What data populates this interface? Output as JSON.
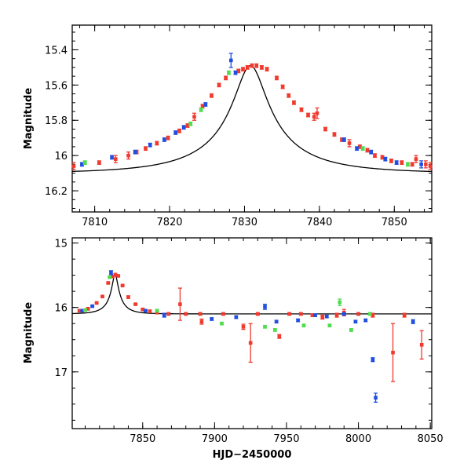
{
  "colors": {
    "blue": "#1f4fe0",
    "red": "#f03a2e",
    "green": "#4fdc4f",
    "model": "#000000"
  },
  "chart_data": [
    {
      "id": "top",
      "type": "scatter",
      "ylabel": "Magnitude",
      "xlabel": "",
      "xlim": [
        7807,
        7855
      ],
      "ylim": [
        16.32,
        15.26
      ],
      "y_inverted": true,
      "xticks": [
        7810,
        7820,
        7830,
        7840,
        7850
      ],
      "xtick_labels": [
        "7810",
        "7820",
        "7830",
        "7840",
        "7850"
      ],
      "yticks": [
        15.4,
        15.6,
        15.8,
        16,
        16.2
      ],
      "ytick_labels": [
        "15.4",
        "15.6",
        "15.8",
        "16",
        "16.2"
      ],
      "model": {
        "peak_time": 7830.8,
        "peak_mag": 15.49,
        "baseline_mag": 16.1,
        "u0": 0.17,
        "tE": 12
      },
      "series": [
        {
          "color": "red",
          "points": [
            [
              7807.2,
              16.06,
              0.02
            ],
            [
              7810.6,
              16.04,
              0.01
            ],
            [
              7812.8,
              16.02,
              0.02
            ],
            [
              7814.5,
              16.0,
              0.02
            ],
            [
              7815.6,
              15.98,
              0.01
            ],
            [
              7816.8,
              15.96,
              0.01
            ],
            [
              7818.3,
              15.93,
              0.01
            ],
            [
              7819.8,
              15.9,
              0.01
            ],
            [
              7821.3,
              15.86,
              0.01
            ],
            [
              7822.4,
              15.83,
              0.01
            ],
            [
              7823.3,
              15.78,
              0.02
            ],
            [
              7824.4,
              15.72,
              0.01
            ],
            [
              7825.6,
              15.66,
              0.01
            ],
            [
              7826.6,
              15.6,
              0.01
            ],
            [
              7827.5,
              15.56,
              0.01
            ],
            [
              7829.2,
              15.52,
              0.01
            ],
            [
              7829.8,
              15.51,
              0.01
            ],
            [
              7830.4,
              15.5,
              0.01
            ],
            [
              7831.0,
              15.49,
              0.01
            ],
            [
              7831.6,
              15.49,
              0.01
            ],
            [
              7832.3,
              15.5,
              0.01
            ],
            [
              7833.0,
              15.51,
              0.01
            ],
            [
              7834.3,
              15.56,
              0.01
            ],
            [
              7835.1,
              15.61,
              0.01
            ],
            [
              7835.9,
              15.66,
              0.01
            ],
            [
              7836.6,
              15.7,
              0.01
            ],
            [
              7837.6,
              15.74,
              0.01
            ],
            [
              7838.5,
              15.77,
              0.01
            ],
            [
              7839.3,
              15.78,
              0.02
            ],
            [
              7839.7,
              15.76,
              0.03
            ],
            [
              7840.8,
              15.85,
              0.01
            ],
            [
              7842.0,
              15.88,
              0.01
            ],
            [
              7843.0,
              15.91,
              0.01
            ],
            [
              7844.0,
              15.93,
              0.02
            ],
            [
              7845.4,
              15.95,
              0.01
            ],
            [
              7846.4,
              15.97,
              0.01
            ],
            [
              7847.4,
              16.0,
              0.01
            ],
            [
              7848.4,
              16.01,
              0.01
            ],
            [
              7849.6,
              16.03,
              0.01
            ],
            [
              7851.0,
              16.04,
              0.01
            ],
            [
              7852.4,
              16.05,
              0.01
            ],
            [
              7852.9,
              16.02,
              0.02
            ],
            [
              7854.2,
              16.05,
              0.02
            ],
            [
              7854.8,
              16.06,
              0.02
            ]
          ]
        },
        {
          "color": "blue",
          "points": [
            [
              7808.3,
              16.05,
              0.01
            ],
            [
              7812.3,
              16.01,
              0.01
            ],
            [
              7815.4,
              15.98,
              0.01
            ],
            [
              7817.4,
              15.94,
              0.01
            ],
            [
              7819.3,
              15.91,
              0.01
            ],
            [
              7820.8,
              15.87,
              0.01
            ],
            [
              7821.9,
              15.84,
              0.01
            ],
            [
              7824.8,
              15.71,
              0.01
            ],
            [
              7828.2,
              15.46,
              0.04
            ],
            [
              7828.8,
              15.53,
              0.01
            ],
            [
              7843.3,
              15.91,
              0.01
            ],
            [
              7845.0,
              15.96,
              0.01
            ],
            [
              7846.9,
              15.98,
              0.01
            ],
            [
              7848.8,
              16.02,
              0.01
            ],
            [
              7850.3,
              16.04,
              0.01
            ],
            [
              7853.6,
              16.05,
              0.02
            ]
          ]
        },
        {
          "color": "green",
          "points": [
            [
              7808.7,
              16.04,
              0.01
            ],
            [
              7822.8,
              15.82,
              0.01
            ],
            [
              7824.2,
              15.74,
              0.01
            ],
            [
              7827.9,
              15.53,
              0.01
            ],
            [
              7845.8,
              15.96,
              0.01
            ],
            [
              7851.8,
              16.05,
              0.01
            ]
          ]
        }
      ]
    },
    {
      "id": "bottom",
      "type": "scatter",
      "ylabel": "Magnitude",
      "xlabel": "HJD−2450000",
      "xlim": [
        7801,
        8051
      ],
      "ylim": [
        17.88,
        14.92
      ],
      "y_inverted": true,
      "xticks": [
        7850,
        7900,
        7950,
        8000,
        8050
      ],
      "xtick_labels": [
        "7850",
        "7900",
        "7950",
        "8000",
        "8050"
      ],
      "yticks": [
        15,
        16,
        17
      ],
      "ytick_labels": [
        "15",
        "16",
        "17"
      ],
      "model": {
        "peak_time": 7830.8,
        "peak_mag": 15.49,
        "baseline_mag": 16.1,
        "u0": 0.17,
        "tE": 12
      },
      "series": [
        {
          "color": "red",
          "points": [
            [
              7806,
              16.05,
              0.02
            ],
            [
              7812,
              16.02,
              0.02
            ],
            [
              7818,
              15.93,
              0.01
            ],
            [
              7822,
              15.83,
              0.01
            ],
            [
              7826,
              15.62,
              0.01
            ],
            [
              7829,
              15.52,
              0.01
            ],
            [
              7831,
              15.49,
              0.01
            ],
            [
              7833,
              15.51,
              0.01
            ],
            [
              7836,
              15.66,
              0.01
            ],
            [
              7840,
              15.84,
              0.02
            ],
            [
              7845,
              15.95,
              0.01
            ],
            [
              7850,
              16.03,
              0.01
            ],
            [
              7855,
              16.06,
              0.02
            ],
            [
              7860,
              16.08,
              0.02
            ],
            [
              7868,
              16.1,
              0.02
            ],
            [
              7876,
              15.95,
              0.25
            ],
            [
              7880,
              16.1,
              0.02
            ],
            [
              7890,
              16.1,
              0.02
            ],
            [
              7891,
              16.22,
              0.04
            ],
            [
              7906,
              16.1,
              0.02
            ],
            [
              7920,
              16.3,
              0.04
            ],
            [
              7925,
              16.55,
              0.3
            ],
            [
              7930,
              16.1,
              0.02
            ],
            [
              7945,
              16.45,
              0.03
            ],
            [
              7952,
              16.1,
              0.02
            ],
            [
              7960,
              16.1,
              0.02
            ],
            [
              7968,
              16.12,
              0.02
            ],
            [
              7975,
              16.15,
              0.03
            ],
            [
              7985,
              16.12,
              0.03
            ],
            [
              7990,
              16.08,
              0.05
            ],
            [
              8000,
              16.1,
              0.02
            ],
            [
              8010,
              16.12,
              0.03
            ],
            [
              8024,
              16.7,
              0.45
            ],
            [
              8032,
              16.12,
              0.03
            ],
            [
              8044,
              16.58,
              0.22
            ]
          ]
        },
        {
          "color": "blue",
          "points": [
            [
              7808,
              16.05,
              0.01
            ],
            [
              7815,
              15.98,
              0.01
            ],
            [
              7828,
              15.46,
              0.03
            ],
            [
              7852,
              16.05,
              0.01
            ],
            [
              7865,
              16.12,
              0.03
            ],
            [
              7898,
              16.18,
              0.02
            ],
            [
              7915,
              16.15,
              0.02
            ],
            [
              7935,
              15.99,
              0.04
            ],
            [
              7943,
              16.22,
              0.02
            ],
            [
              7958,
              16.2,
              0.02
            ],
            [
              7970,
              16.12,
              0.02
            ],
            [
              7978,
              16.14,
              0.02
            ],
            [
              7990,
              16.1,
              0.02
            ],
            [
              7998,
              16.22,
              0.02
            ],
            [
              8005,
              16.2,
              0.02
            ],
            [
              8010,
              16.81,
              0.03
            ],
            [
              8012,
              17.4,
              0.07
            ],
            [
              8038,
              16.22,
              0.03
            ]
          ]
        },
        {
          "color": "green",
          "points": [
            [
              7810,
              16.04,
              0.01
            ],
            [
              7827,
              15.53,
              0.01
            ],
            [
              7860,
              16.05,
              0.02
            ],
            [
              7905,
              16.25,
              0.02
            ],
            [
              7935,
              16.3,
              0.02
            ],
            [
              7942,
              16.35,
              0.02
            ],
            [
              7962,
              16.28,
              0.02
            ],
            [
              7980,
              16.28,
              0.02
            ],
            [
              7987,
              15.92,
              0.05
            ],
            [
              7995,
              16.35,
              0.02
            ],
            [
              8008,
              16.1,
              0.02
            ]
          ]
        }
      ]
    }
  ]
}
